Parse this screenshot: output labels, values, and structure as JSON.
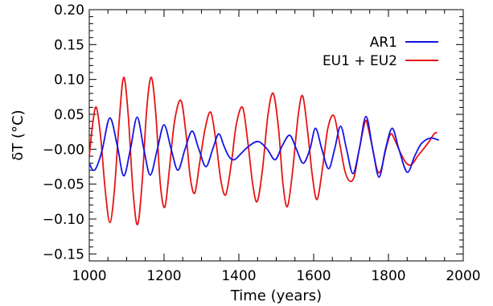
{
  "chart_data": {
    "type": "line",
    "xlabel": "Time (years)",
    "ylabel": "δT (°C)",
    "xlim": [
      1000,
      2000
    ],
    "ylim": [
      -0.16,
      0.2
    ],
    "x_ticks": [
      1000,
      1200,
      1400,
      1600,
      1800,
      2000
    ],
    "x_tick_labels": [
      "1000",
      "1200",
      "1400",
      "1600",
      "1800",
      "2000"
    ],
    "y_ticks": [
      -0.15,
      -0.1,
      -0.05,
      0.0,
      0.05,
      0.1,
      0.15,
      0.2
    ],
    "y_tick_labels": [
      "−0.15",
      "−0.10",
      "−0.05",
      "−0.00",
      "0.05",
      "0.10",
      "0.15",
      "0.20"
    ],
    "grid": false,
    "legend_position": "top-right",
    "series": [
      {
        "name": "AR1",
        "color": "#1414e6",
        "points": [
          [
            1000,
            -0.02
          ],
          [
            1010,
            -0.03
          ],
          [
            1020,
            -0.025
          ],
          [
            1035,
            0.0
          ],
          [
            1055,
            0.045
          ],
          [
            1075,
            0.005
          ],
          [
            1092,
            -0.038
          ],
          [
            1110,
            0.0
          ],
          [
            1128,
            0.046
          ],
          [
            1146,
            0.0
          ],
          [
            1163,
            -0.037
          ],
          [
            1182,
            0.0
          ],
          [
            1200,
            0.035
          ],
          [
            1219,
            0.0
          ],
          [
            1237,
            -0.03
          ],
          [
            1256,
            0.0
          ],
          [
            1275,
            0.026
          ],
          [
            1293,
            0.0
          ],
          [
            1312,
            -0.025
          ],
          [
            1330,
            0.0
          ],
          [
            1346,
            0.022
          ],
          [
            1360,
            0.005
          ],
          [
            1373,
            -0.01
          ],
          [
            1388,
            -0.015
          ],
          [
            1408,
            -0.005
          ],
          [
            1428,
            0.005
          ],
          [
            1452,
            0.011
          ],
          [
            1476,
            0.0
          ],
          [
            1497,
            -0.015
          ],
          [
            1516,
            0.005
          ],
          [
            1536,
            0.02
          ],
          [
            1554,
            0.0
          ],
          [
            1572,
            -0.02
          ],
          [
            1590,
            0.0
          ],
          [
            1605,
            0.03
          ],
          [
            1622,
            0.0
          ],
          [
            1640,
            -0.028
          ],
          [
            1656,
            0.0
          ],
          [
            1672,
            0.033
          ],
          [
            1688,
            0.0
          ],
          [
            1705,
            -0.035
          ],
          [
            1722,
            0.0
          ],
          [
            1740,
            0.047
          ],
          [
            1758,
            0.0
          ],
          [
            1775,
            -0.04
          ],
          [
            1792,
            0.0
          ],
          [
            1810,
            0.03
          ],
          [
            1828,
            0.0
          ],
          [
            1850,
            -0.033
          ],
          [
            1870,
            -0.01
          ],
          [
            1888,
            0.008
          ],
          [
            1912,
            0.016
          ],
          [
            1935,
            0.013
          ]
        ]
      },
      {
        "name": "EU1 + EU2",
        "color": "#e61414",
        "points": [
          [
            1000,
            -0.01
          ],
          [
            1010,
            0.04
          ],
          [
            1019,
            0.06
          ],
          [
            1030,
            0.02
          ],
          [
            1043,
            -0.06
          ],
          [
            1055,
            -0.105
          ],
          [
            1067,
            -0.06
          ],
          [
            1080,
            0.04
          ],
          [
            1092,
            0.103
          ],
          [
            1104,
            0.05
          ],
          [
            1117,
            -0.06
          ],
          [
            1129,
            -0.108
          ],
          [
            1141,
            -0.05
          ],
          [
            1154,
            0.06
          ],
          [
            1166,
            0.103
          ],
          [
            1178,
            0.05
          ],
          [
            1190,
            -0.05
          ],
          [
            1202,
            -0.083
          ],
          [
            1214,
            -0.03
          ],
          [
            1228,
            0.04
          ],
          [
            1245,
            0.07
          ],
          [
            1259,
            0.02
          ],
          [
            1270,
            -0.04
          ],
          [
            1282,
            -0.063
          ],
          [
            1295,
            -0.02
          ],
          [
            1310,
            0.03
          ],
          [
            1325,
            0.053
          ],
          [
            1339,
            0.01
          ],
          [
            1352,
            -0.045
          ],
          [
            1365,
            -0.065
          ],
          [
            1380,
            -0.02
          ],
          [
            1393,
            0.035
          ],
          [
            1410,
            0.06
          ],
          [
            1424,
            0.01
          ],
          [
            1437,
            -0.05
          ],
          [
            1449,
            -0.075
          ],
          [
            1463,
            -0.03
          ],
          [
            1478,
            0.05
          ],
          [
            1492,
            0.08
          ],
          [
            1506,
            0.03
          ],
          [
            1518,
            -0.05
          ],
          [
            1530,
            -0.082
          ],
          [
            1544,
            -0.03
          ],
          [
            1559,
            0.05
          ],
          [
            1571,
            0.076
          ],
          [
            1585,
            0.02
          ],
          [
            1597,
            -0.04
          ],
          [
            1609,
            -0.072
          ],
          [
            1623,
            -0.03
          ],
          [
            1638,
            0.03
          ],
          [
            1654,
            0.048
          ],
          [
            1669,
            0.01
          ],
          [
            1683,
            -0.03
          ],
          [
            1695,
            -0.045
          ],
          [
            1708,
            -0.04
          ],
          [
            1722,
            0.0
          ],
          [
            1738,
            0.04
          ],
          [
            1746,
            0.03
          ],
          [
            1758,
            0.0
          ],
          [
            1770,
            -0.03
          ],
          [
            1780,
            -0.03
          ],
          [
            1793,
            0.0
          ],
          [
            1806,
            0.022
          ],
          [
            1818,
            0.012
          ],
          [
            1832,
            -0.005
          ],
          [
            1848,
            -0.02
          ],
          [
            1862,
            -0.022
          ],
          [
            1878,
            -0.01
          ],
          [
            1893,
            0.0
          ],
          [
            1910,
            0.012
          ],
          [
            1922,
            0.022
          ],
          [
            1930,
            0.024
          ]
        ]
      }
    ]
  }
}
